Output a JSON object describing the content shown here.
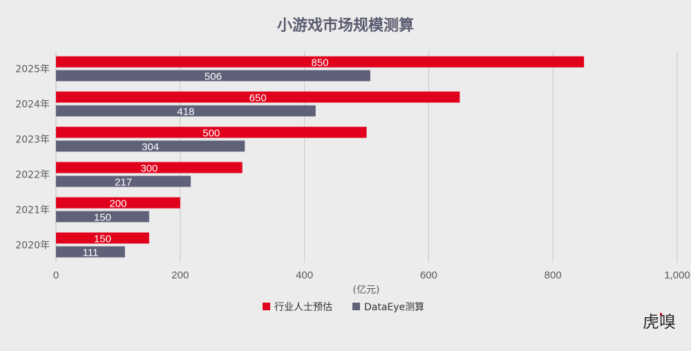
{
  "chart_data": {
    "type": "bar",
    "orientation": "horizontal",
    "title": "小游戏市场规模测算",
    "xlabel": "(亿元)",
    "ylabel": "",
    "xlim": [
      0,
      1000
    ],
    "xticks": [
      0,
      200,
      400,
      600,
      800,
      1000
    ],
    "xtick_labels": [
      "0",
      "200",
      "400",
      "600",
      "800",
      "1,000"
    ],
    "categories": [
      "2025年",
      "2024年",
      "2023年",
      "2022年",
      "2021年",
      "2020年"
    ],
    "series": [
      {
        "name": "行业人士预估",
        "color": "#e0001b",
        "values": [
          850,
          650,
          500,
          300,
          200,
          150
        ]
      },
      {
        "name": "DataEye测算",
        "color": "#5f6178",
        "values": [
          506,
          418,
          304,
          217,
          150,
          111
        ]
      }
    ],
    "grid": "vertical",
    "legend_position": "bottom",
    "watermark": "虎嗅"
  }
}
